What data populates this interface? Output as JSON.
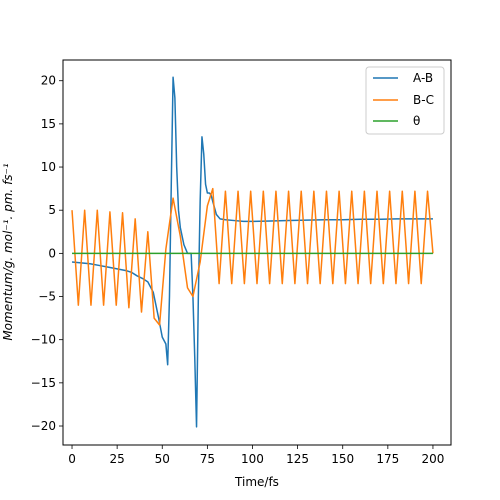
{
  "chart_data": {
    "type": "line",
    "title": "",
    "xlabel": "Time/fs",
    "ylabel": "Momentum/g. mol⁻¹. pm. fs⁻¹",
    "xlim": [
      -5,
      210
    ],
    "ylim": [
      -22.2,
      22.4
    ],
    "xticks": [
      0,
      25,
      50,
      75,
      100,
      125,
      150,
      175,
      200
    ],
    "yticks": [
      -20,
      -15,
      -10,
      -5,
      0,
      5,
      10,
      15,
      20
    ],
    "xtick_labels": [
      "0",
      "25",
      "50",
      "75",
      "100",
      "125",
      "150",
      "175",
      "200"
    ],
    "ytick_labels": [
      "−20",
      "−15",
      "−10",
      "−5",
      "0",
      "5",
      "10",
      "15",
      "20"
    ],
    "grid": false,
    "legend_position": "top-right",
    "series": [
      {
        "name": "A-B",
        "color": "#1f77b4",
        "x": [
          0,
          5,
          10,
          15,
          20,
          25,
          30,
          33,
          36,
          39,
          42,
          45,
          48,
          50,
          52,
          53,
          54,
          55,
          56,
          57,
          58,
          59,
          60,
          61,
          62,
          63,
          64,
          65,
          66,
          67,
          68,
          69,
          70,
          71,
          72,
          73,
          74,
          75,
          76,
          77,
          78,
          80,
          82,
          85,
          90,
          95,
          100,
          110,
          120,
          130,
          140,
          150,
          160,
          170,
          180,
          190,
          200
        ],
        "y": [
          -1.0,
          -1.1,
          -1.2,
          -1.4,
          -1.6,
          -1.8,
          -2.0,
          -2.2,
          -2.6,
          -2.9,
          -3.3,
          -4.5,
          -7.5,
          -9.7,
          -10.5,
          -12.9,
          -5.0,
          8.0,
          20.4,
          18.0,
          10.0,
          5.0,
          3.0,
          2.0,
          1.0,
          0.5,
          0.0,
          0.0,
          0.0,
          -5.0,
          -12.0,
          -20.1,
          -5.0,
          6.0,
          13.5,
          11.5,
          8.0,
          7.0,
          7.0,
          6.8,
          6.0,
          4.5,
          4.0,
          3.9,
          3.8,
          3.7,
          3.7,
          3.75,
          3.8,
          3.85,
          3.9,
          3.9,
          3.95,
          3.95,
          4.0,
          4.0,
          4.0
        ]
      },
      {
        "name": "B-C",
        "color": "#ff7f0e",
        "x": [
          0,
          3.5,
          7,
          10.5,
          14,
          17.5,
          21,
          24.5,
          28,
          31.5,
          35,
          38.5,
          42,
          45.5,
          48.5,
          52,
          56,
          60,
          64,
          67,
          71,
          75,
          78,
          81.5,
          85,
          88.5,
          92,
          95.5,
          99,
          102.5,
          106,
          109.5,
          113,
          116.5,
          120,
          123.5,
          127,
          130.5,
          134,
          137.5,
          141,
          144.5,
          148,
          151.5,
          155,
          158.5,
          162,
          165.5,
          169,
          172.5,
          176,
          179.5,
          183,
          186.5,
          190,
          193.5,
          197,
          200
        ],
        "y": [
          5.0,
          -6.0,
          5.0,
          -6.0,
          5.0,
          -6.0,
          4.8,
          -6.0,
          4.7,
          -6.3,
          4.0,
          -6.8,
          2.5,
          -7.5,
          -8.3,
          0.5,
          6.4,
          2.0,
          -4.0,
          -5.0,
          -1.0,
          5.5,
          7.5,
          -3.5,
          7.2,
          -3.5,
          7.2,
          -3.5,
          7.2,
          -3.5,
          7.2,
          -3.5,
          7.2,
          -3.5,
          7.2,
          -3.5,
          7.2,
          -3.5,
          7.2,
          -3.5,
          7.2,
          -3.5,
          7.2,
          -3.5,
          7.2,
          -3.5,
          7.2,
          -3.5,
          7.2,
          -3.5,
          7.2,
          -3.5,
          7.2,
          -3.5,
          7.2,
          -3.5,
          7.2,
          0.0
        ]
      },
      {
        "name": "θ",
        "color": "#2ca02c",
        "x": [
          0,
          200
        ],
        "y": [
          0,
          0
        ]
      }
    ]
  }
}
